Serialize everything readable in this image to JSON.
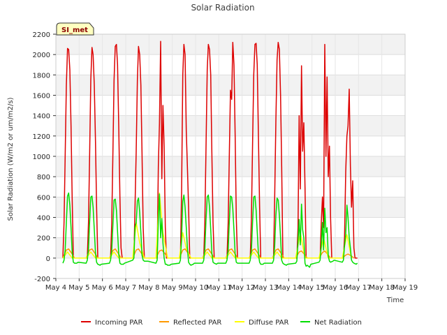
{
  "chart_data": {
    "type": "line",
    "title": "Solar Radiation",
    "xlabel": "Time",
    "ylabel": "Solar Radiation (W/m2 or um/m2/s)",
    "station_label": "SI_met",
    "xlim": [
      4,
      19
    ],
    "ylim": [
      -200,
      2200
    ],
    "x_ticks": [
      {
        "v": 4,
        "label": "May 4"
      },
      {
        "v": 5,
        "label": "May 5"
      },
      {
        "v": 6,
        "label": "May 6"
      },
      {
        "v": 7,
        "label": "May 7"
      },
      {
        "v": 8,
        "label": "May 8"
      },
      {
        "v": 9,
        "label": "May 9"
      },
      {
        "v": 10,
        "label": "May 10"
      },
      {
        "v": 11,
        "label": "May 11"
      },
      {
        "v": 12,
        "label": "May 12"
      },
      {
        "v": 13,
        "label": "May 13"
      },
      {
        "v": 14,
        "label": "May 14"
      },
      {
        "v": 15,
        "label": "May 15"
      },
      {
        "v": 16,
        "label": "May 16"
      },
      {
        "v": 17,
        "label": "May 17"
      },
      {
        "v": 18,
        "label": "May 18"
      },
      {
        "v": 19,
        "label": "May 19"
      }
    ],
    "y_ticks": [
      -200,
      0,
      200,
      400,
      600,
      800,
      1000,
      1200,
      1400,
      1600,
      1800,
      2000,
      2200
    ],
    "grid": true,
    "legend_position": "bottom",
    "series": [
      {
        "name": "Incoming PAR",
        "color": "#dd0000",
        "x": [
          4.3,
          4.35,
          4.4,
          4.45,
          4.5,
          4.55,
          4.6,
          4.65,
          4.7,
          4.75,
          4.8,
          4.85,
          4.9,
          5.35,
          5.4,
          5.45,
          5.5,
          5.55,
          5.6,
          5.65,
          5.7,
          5.75,
          5.8,
          5.85,
          5.9,
          5.95,
          6.35,
          6.4,
          6.45,
          6.5,
          6.55,
          6.6,
          6.65,
          6.7,
          6.75,
          6.8,
          6.85,
          6.9,
          6.95,
          7.35,
          7.4,
          7.45,
          7.5,
          7.55,
          7.6,
          7.65,
          7.7,
          7.75,
          7.8,
          7.85,
          7.9,
          7.95,
          8.35,
          8.4,
          8.45,
          8.5,
          8.55,
          8.6,
          8.65,
          8.7,
          8.75,
          8.8,
          8.85,
          8.9,
          8.95,
          9.35,
          9.4,
          9.45,
          9.5,
          9.55,
          9.6,
          9.65,
          9.7,
          9.75,
          9.8,
          9.85,
          9.9,
          9.95,
          10.35,
          10.4,
          10.45,
          10.5,
          10.55,
          10.6,
          10.65,
          10.7,
          10.75,
          10.8,
          10.85,
          10.9,
          10.95,
          11.35,
          11.4,
          11.45,
          11.5,
          11.55,
          11.6,
          11.65,
          11.7,
          11.75,
          11.8,
          11.85,
          11.9,
          11.95,
          12.35,
          12.4,
          12.45,
          12.5,
          12.55,
          12.6,
          12.65,
          12.7,
          12.75,
          12.8,
          12.85,
          12.9,
          12.95,
          13.35,
          13.4,
          13.45,
          13.5,
          13.55,
          13.6,
          13.65,
          13.7,
          13.75,
          13.8,
          13.85,
          13.9,
          13.95,
          14.35,
          14.4,
          14.45,
          14.5,
          14.55,
          14.6,
          14.65,
          14.7,
          14.75,
          14.8,
          14.85,
          14.9,
          14.95,
          15.35,
          15.4,
          15.45,
          15.5,
          15.55,
          15.6,
          15.65,
          15.7,
          15.75,
          15.8,
          15.85,
          15.9,
          15.95,
          16.35,
          16.4,
          16.45,
          16.5,
          16.55,
          16.6,
          16.65,
          16.7,
          16.75,
          16.8,
          16.85,
          16.9,
          16.95
        ],
        "y": [
          0,
          350,
          1000,
          1700,
          2060,
          2050,
          1850,
          1300,
          600,
          0,
          0,
          0,
          0,
          0,
          350,
          1000,
          1750,
          2070,
          2000,
          1700,
          1150,
          500,
          0,
          0,
          0,
          0,
          0,
          350,
          1050,
          1750,
          2080,
          2100,
          1900,
          1300,
          600,
          100,
          0,
          0,
          0,
          0,
          500,
          1050,
          1750,
          2080,
          2000,
          1700,
          1050,
          300,
          0,
          0,
          0,
          0,
          0,
          900,
          1320,
          2130,
          780,
          1500,
          1100,
          300,
          0,
          0,
          0,
          0,
          0,
          0,
          650,
          1800,
          2100,
          2000,
          1250,
          900,
          500,
          0,
          0,
          0,
          0,
          0,
          0,
          350,
          1100,
          1850,
          2100,
          2050,
          1800,
          1050,
          350,
          0,
          0,
          0,
          0,
          0,
          350,
          1000,
          1650,
          1560,
          2120,
          1900,
          1200,
          400,
          0,
          0,
          0,
          0,
          0,
          400,
          1150,
          1800,
          2100,
          2110,
          1900,
          1200,
          500,
          0,
          0,
          0,
          0,
          0,
          600,
          1350,
          1950,
          2120,
          2050,
          1600,
          900,
          0,
          0,
          0,
          0,
          0,
          0,
          300,
          1400,
          680,
          1890,
          1050,
          1330,
          700,
          0,
          0,
          0,
          0,
          0,
          0,
          350,
          600,
          300,
          2100,
          1000,
          1780,
          800,
          1100,
          400,
          0,
          0,
          0,
          0,
          200,
          850,
          1200,
          1300,
          1660,
          900,
          500,
          760,
          100,
          0,
          0,
          0
        ]
      },
      {
        "name": "Reflected PAR",
        "color": "#ff9900",
        "x": [
          4.3,
          4.45,
          4.55,
          4.7,
          4.8,
          5.3,
          5.45,
          5.55,
          5.7,
          5.8,
          6.3,
          6.45,
          6.55,
          6.7,
          6.8,
          7.3,
          7.45,
          7.55,
          7.7,
          7.8,
          8.3,
          8.45,
          8.55,
          8.7,
          8.8,
          9.3,
          9.45,
          9.55,
          9.7,
          9.8,
          10.3,
          10.45,
          10.55,
          10.7,
          10.8,
          11.3,
          11.45,
          11.55,
          11.7,
          11.8,
          12.3,
          12.45,
          12.55,
          12.7,
          12.8,
          13.3,
          13.45,
          13.55,
          13.7,
          13.8,
          14.3,
          14.45,
          14.55,
          14.7,
          14.8,
          15.3,
          15.45,
          15.55,
          15.7,
          15.8,
          16.3,
          16.45,
          16.55,
          16.7,
          16.8
        ],
        "y": [
          0,
          80,
          90,
          40,
          0,
          0,
          80,
          90,
          40,
          0,
          0,
          75,
          90,
          40,
          0,
          0,
          80,
          90,
          40,
          0,
          0,
          70,
          80,
          40,
          0,
          0,
          80,
          90,
          40,
          0,
          0,
          80,
          90,
          40,
          0,
          0,
          80,
          90,
          40,
          0,
          0,
          80,
          90,
          40,
          0,
          0,
          80,
          90,
          40,
          0,
          0,
          60,
          70,
          30,
          0,
          0,
          55,
          70,
          30,
          0,
          0,
          30,
          40,
          20,
          0
        ]
      },
      {
        "name": "Diffuse PAR",
        "color": "#ffff00",
        "x": [
          4.3,
          4.5,
          4.7,
          5.3,
          5.5,
          5.7,
          6.3,
          6.5,
          6.7,
          7.3,
          7.45,
          7.6,
          7.8,
          8.3,
          8.45,
          8.6,
          8.8,
          9.3,
          9.45,
          9.6,
          9.8,
          10.3,
          10.5,
          10.7,
          11.3,
          11.5,
          11.7,
          12.3,
          12.5,
          12.7,
          13.3,
          13.5,
          13.7,
          14.3,
          14.5,
          14.7,
          15.3,
          15.5,
          15.7,
          16.3,
          16.5,
          16.7
        ],
        "y": [
          0,
          60,
          0,
          0,
          60,
          0,
          0,
          60,
          0,
          0,
          350,
          150,
          0,
          0,
          640,
          250,
          0,
          0,
          250,
          100,
          0,
          0,
          60,
          0,
          0,
          60,
          0,
          0,
          60,
          0,
          0,
          60,
          0,
          0,
          250,
          0,
          0,
          200,
          0,
          0,
          230,
          0
        ]
      },
      {
        "name": "Net Radiation",
        "color": "#00dd00",
        "x": [
          4.3,
          4.35,
          4.4,
          4.45,
          4.5,
          4.55,
          4.6,
          4.65,
          4.7,
          4.75,
          4.8,
          4.9,
          4.95,
          5.3,
          5.35,
          5.4,
          5.45,
          5.5,
          5.55,
          5.6,
          5.65,
          5.7,
          5.75,
          5.8,
          5.9,
          5.95,
          6.3,
          6.35,
          6.4,
          6.45,
          6.5,
          6.55,
          6.6,
          6.65,
          6.7,
          6.75,
          6.8,
          6.9,
          6.95,
          7.3,
          7.35,
          7.4,
          7.45,
          7.5,
          7.55,
          7.6,
          7.65,
          7.7,
          7.75,
          7.8,
          7.9,
          7.95,
          8.3,
          8.35,
          8.4,
          8.45,
          8.5,
          8.55,
          8.6,
          8.65,
          8.7,
          8.75,
          8.8,
          8.9,
          8.95,
          9.3,
          9.35,
          9.4,
          9.45,
          9.5,
          9.55,
          9.6,
          9.65,
          9.7,
          9.75,
          9.8,
          9.9,
          9.95,
          10.3,
          10.35,
          10.4,
          10.45,
          10.5,
          10.55,
          10.6,
          10.65,
          10.7,
          10.75,
          10.8,
          10.9,
          10.95,
          11.3,
          11.35,
          11.4,
          11.45,
          11.5,
          11.55,
          11.6,
          11.65,
          11.7,
          11.75,
          11.8,
          11.9,
          11.95,
          12.3,
          12.35,
          12.4,
          12.45,
          12.5,
          12.55,
          12.6,
          12.65,
          12.7,
          12.75,
          12.8,
          12.9,
          12.95,
          13.3,
          13.35,
          13.4,
          13.45,
          13.5,
          13.55,
          13.6,
          13.65,
          13.7,
          13.75,
          13.8,
          13.9,
          13.95,
          14.3,
          14.35,
          14.4,
          14.45,
          14.5,
          14.55,
          14.6,
          14.65,
          14.7,
          14.75,
          14.8,
          14.9,
          14.95,
          15.3,
          15.35,
          15.4,
          15.45,
          15.5,
          15.55,
          15.6,
          15.65,
          15.7,
          15.75,
          15.8,
          15.9,
          15.95,
          16.3,
          16.35,
          16.4,
          16.45,
          16.5,
          16.55,
          16.6,
          16.65,
          16.7,
          16.75,
          16.8,
          16.9,
          16.95
        ],
        "y": [
          -50,
          -20,
          80,
          350,
          610,
          640,
          520,
          300,
          60,
          -40,
          -50,
          -50,
          -40,
          -50,
          -20,
          90,
          350,
          600,
          610,
          500,
          280,
          50,
          -40,
          -60,
          -70,
          -60,
          -50,
          -20,
          80,
          330,
          570,
          580,
          470,
          260,
          40,
          -50,
          -60,
          -60,
          -50,
          -20,
          0,
          300,
          350,
          560,
          590,
          450,
          250,
          30,
          -20,
          -30,
          -30,
          -30,
          -50,
          -20,
          370,
          630,
          200,
          390,
          150,
          0,
          -60,
          -60,
          -70,
          -70,
          -60,
          -50,
          -20,
          200,
          560,
          620,
          500,
          300,
          100,
          -40,
          -60,
          -70,
          -60,
          -50,
          -50,
          -20,
          90,
          380,
          600,
          620,
          500,
          280,
          50,
          -40,
          -50,
          -60,
          -50,
          -50,
          -20,
          80,
          350,
          610,
          600,
          490,
          270,
          40,
          -40,
          -50,
          -50,
          -50,
          -50,
          -20,
          80,
          360,
          600,
          610,
          470,
          260,
          40,
          -40,
          -60,
          -60,
          -50,
          -50,
          -20,
          120,
          420,
          590,
          570,
          420,
          200,
          -20,
          -50,
          -60,
          -70,
          -60,
          -50,
          -30,
          150,
          380,
          130,
          530,
          280,
          200,
          -50,
          -80,
          -70,
          -90,
          -60,
          -40,
          -20,
          120,
          350,
          80,
          490,
          250,
          300,
          20,
          -30,
          -40,
          -30,
          -20,
          -40,
          -20,
          120,
          230,
          520,
          400,
          200,
          100,
          -20,
          -40,
          -50,
          -60,
          -50
        ]
      }
    ]
  }
}
